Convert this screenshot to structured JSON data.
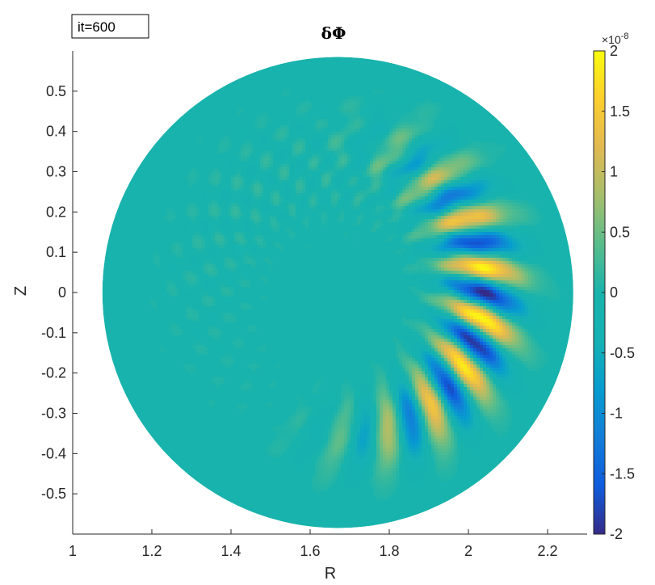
{
  "chart_data": {
    "type": "heatmap",
    "title": "δΦ",
    "xlabel": "R",
    "ylabel": "Z",
    "annotation": "it=600",
    "xlim": [
      1.0,
      2.3
    ],
    "ylim": [
      -0.6,
      0.6
    ],
    "x_ticks": [
      "1",
      "1.2",
      "1.4",
      "1.6",
      "1.8",
      "2",
      "2.2"
    ],
    "x_tick_values": [
      1.0,
      1.2,
      1.4,
      1.6,
      1.8,
      2.0,
      2.2
    ],
    "y_ticks": [
      "0.5",
      "0.4",
      "0.3",
      "0.2",
      "0.1",
      "0",
      "-0.1",
      "-0.2",
      "-0.3",
      "-0.4",
      "-0.5"
    ],
    "y_tick_values": [
      0.5,
      0.4,
      0.3,
      0.2,
      0.1,
      0,
      -0.1,
      -0.2,
      -0.3,
      -0.4,
      -0.5
    ],
    "colorbar": {
      "colormap": "parula",
      "clim": [
        -2,
        2
      ],
      "exponent_label": "×10",
      "exponent_power": "-8",
      "ticks": [
        "2",
        "1.5",
        "1",
        "0.5",
        "0",
        "-0.5",
        "-1",
        "-1.5",
        "-2"
      ],
      "tick_values": [
        2,
        1.5,
        1,
        0.5,
        0,
        -0.5,
        -1,
        -1.5,
        -2
      ]
    },
    "domain": {
      "shape": "disk",
      "center_R": 1.67,
      "center_Z": 0.0,
      "radius": 0.595
    },
    "colors": {
      "background": "#18b3ac",
      "positive_peak": "#f9fb0e",
      "negative_peak": "#352a87"
    }
  }
}
